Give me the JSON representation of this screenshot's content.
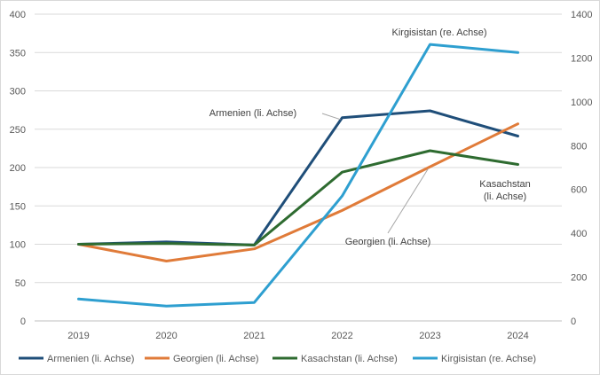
{
  "chart_data": {
    "type": "line",
    "title": "",
    "xlabel": "",
    "ylabel": "",
    "categories": [
      "2019",
      "2020",
      "2021",
      "2022",
      "2023",
      "2024"
    ],
    "y_left": {
      "range": [
        0,
        400
      ],
      "ticks": [
        0,
        50,
        100,
        150,
        200,
        250,
        300,
        350,
        400
      ]
    },
    "y_right": {
      "range": [
        0,
        1400
      ],
      "ticks": [
        0,
        200,
        400,
        600,
        800,
        1000,
        1200,
        1400
      ]
    },
    "grid": "horizontal",
    "legend_position": "bottom",
    "series": [
      {
        "name": "Armenien (li. Achse)",
        "axis": "left",
        "color": "#1f4e79",
        "values": [
          100,
          103,
          99,
          265,
          274,
          241
        ]
      },
      {
        "name": "Georgien (li. Achse)",
        "axis": "left",
        "color": "#e07b39",
        "values": [
          100,
          78,
          94,
          144,
          201,
          257
        ]
      },
      {
        "name": "Kasachstan (li. Achse)",
        "axis": "left",
        "color": "#2e6b30",
        "values": [
          100,
          101,
          99,
          194,
          222,
          204
        ]
      },
      {
        "name": "Kirgisistan (re. Achse)",
        "axis": "right",
        "color": "#2e9fd0",
        "values": [
          100,
          68,
          84,
          570,
          1262,
          1225
        ]
      }
    ],
    "annotations": [
      {
        "text": "Armenien (li. Achse)",
        "series": 0,
        "point": 3
      },
      {
        "text": "Georgien (li. Achse)",
        "series": 1,
        "point": 4
      },
      {
        "text": "Kirgisistan (re. Achse)",
        "series": 3,
        "point": 4
      },
      {
        "text": "Kasachstan",
        "text2": "(li. Achse)",
        "series": 2,
        "point": 5
      }
    ]
  }
}
